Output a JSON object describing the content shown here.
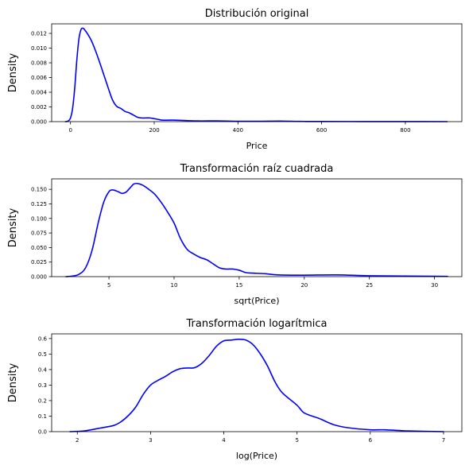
{
  "figure": {
    "line_color": "#0000ff"
  },
  "chart_data": [
    {
      "type": "line",
      "title": "Distribución original",
      "xlabel": "Price",
      "ylabel": "Density",
      "xlim": [
        -45,
        935
      ],
      "ylim": [
        0,
        0.0133
      ],
      "xticks": [
        0,
        200,
        400,
        600,
        800
      ],
      "xtick_labels": [
        "0",
        "200",
        "400",
        "600",
        "800"
      ],
      "yticks": [
        0,
        0.002,
        0.004,
        0.006,
        0.008,
        0.01,
        0.012
      ],
      "ytick_labels": [
        "0.000",
        "0.002",
        "0.004",
        "0.006",
        "0.008",
        "0.010",
        "0.012"
      ],
      "grid": false,
      "series": [
        {
          "color": "#0000ff",
          "x": [
            -12,
            -5,
            0,
            5,
            10,
            15,
            20,
            25,
            30,
            35,
            40,
            50,
            60,
            70,
            80,
            90,
            100,
            110,
            120,
            130,
            140,
            150,
            160,
            170,
            180,
            190,
            200,
            210,
            220,
            250,
            300,
            350,
            400,
            450,
            500,
            550,
            600,
            700,
            800,
            900
          ],
          "y": [
            0.0,
            0.0001,
            0.0005,
            0.0018,
            0.0045,
            0.0083,
            0.0112,
            0.0125,
            0.0127,
            0.0124,
            0.012,
            0.011,
            0.0096,
            0.008,
            0.0063,
            0.0046,
            0.003,
            0.0021,
            0.0018,
            0.0014,
            0.0012,
            0.0009,
            0.0006,
            0.0005,
            0.0005,
            0.0005,
            0.0004,
            0.0003,
            0.0002,
            0.0002,
            0.0001,
            0.0001,
            5e-05,
            5e-05,
            8e-05,
            3e-05,
            2e-05,
            1e-05,
            5e-06,
            0.0
          ]
        }
      ]
    },
    {
      "type": "line",
      "title": "Transformación raíz cuadrada",
      "xlabel": "sqrt(Price)",
      "ylabel": "Density",
      "xlim": [
        0.6,
        32.1
      ],
      "ylim": [
        0,
        0.168
      ],
      "xticks": [
        5,
        10,
        15,
        20,
        25,
        30
      ],
      "xtick_labels": [
        "5",
        "10",
        "15",
        "20",
        "25",
        "30"
      ],
      "yticks": [
        0,
        0.025,
        0.05,
        0.075,
        0.1,
        0.125,
        0.15
      ],
      "ytick_labels": [
        "0.000",
        "0.025",
        "0.050",
        "0.075",
        "0.100",
        "0.125",
        "0.150"
      ],
      "grid": false,
      "series": [
        {
          "color": "#0000ff",
          "x": [
            1.7,
            2.2,
            2.7,
            3.2,
            3.7,
            4.2,
            4.6,
            5.0,
            5.3,
            5.7,
            6.0,
            6.3,
            6.6,
            6.9,
            7.2,
            7.6,
            8.0,
            8.5,
            9.0,
            9.5,
            10.0,
            10.5,
            11.0,
            11.5,
            12.0,
            12.5,
            13.0,
            13.5,
            14.0,
            14.5,
            15.0,
            15.5,
            16.0,
            17.0,
            18.0,
            20.0,
            22.5,
            25.0,
            28.0,
            31.0
          ],
          "y": [
            0.0,
            0.001,
            0.004,
            0.015,
            0.045,
            0.095,
            0.128,
            0.146,
            0.149,
            0.146,
            0.143,
            0.145,
            0.152,
            0.159,
            0.16,
            0.157,
            0.151,
            0.142,
            0.128,
            0.111,
            0.092,
            0.065,
            0.047,
            0.039,
            0.033,
            0.029,
            0.022,
            0.015,
            0.013,
            0.013,
            0.011,
            0.007,
            0.006,
            0.005,
            0.003,
            0.0025,
            0.003,
            0.0015,
            0.001,
            0.0005
          ]
        }
      ]
    },
    {
      "type": "line",
      "title": "Transformación logarítmica",
      "xlabel": "log(Price)",
      "ylabel": "Density",
      "xlim": [
        1.65,
        7.25
      ],
      "ylim": [
        0,
        0.63
      ],
      "xticks": [
        2,
        3,
        4,
        5,
        6,
        7
      ],
      "xtick_labels": [
        "2",
        "3",
        "4",
        "5",
        "6",
        "7"
      ],
      "yticks": [
        0,
        0.1,
        0.2,
        0.3,
        0.4,
        0.5,
        0.6
      ],
      "ytick_labels": [
        "0.0",
        "0.1",
        "0.2",
        "0.3",
        "0.4",
        "0.5",
        "0.6"
      ],
      "grid": false,
      "series": [
        {
          "color": "#0000ff",
          "x": [
            1.9,
            2.1,
            2.3,
            2.5,
            2.6,
            2.7,
            2.8,
            2.9,
            3.0,
            3.1,
            3.2,
            3.3,
            3.4,
            3.5,
            3.6,
            3.7,
            3.8,
            3.9,
            4.0,
            4.1,
            4.2,
            4.3,
            4.4,
            4.5,
            4.6,
            4.7,
            4.8,
            5.0,
            5.1,
            5.3,
            5.5,
            5.7,
            6.0,
            6.2,
            6.5,
            7.0
          ],
          "y": [
            0.0,
            0.005,
            0.022,
            0.04,
            0.065,
            0.105,
            0.16,
            0.24,
            0.3,
            0.33,
            0.355,
            0.385,
            0.405,
            0.41,
            0.412,
            0.44,
            0.49,
            0.55,
            0.585,
            0.59,
            0.595,
            0.59,
            0.56,
            0.5,
            0.42,
            0.32,
            0.25,
            0.17,
            0.12,
            0.085,
            0.045,
            0.025,
            0.012,
            0.012,
            0.005,
            0.0
          ]
        }
      ]
    }
  ]
}
